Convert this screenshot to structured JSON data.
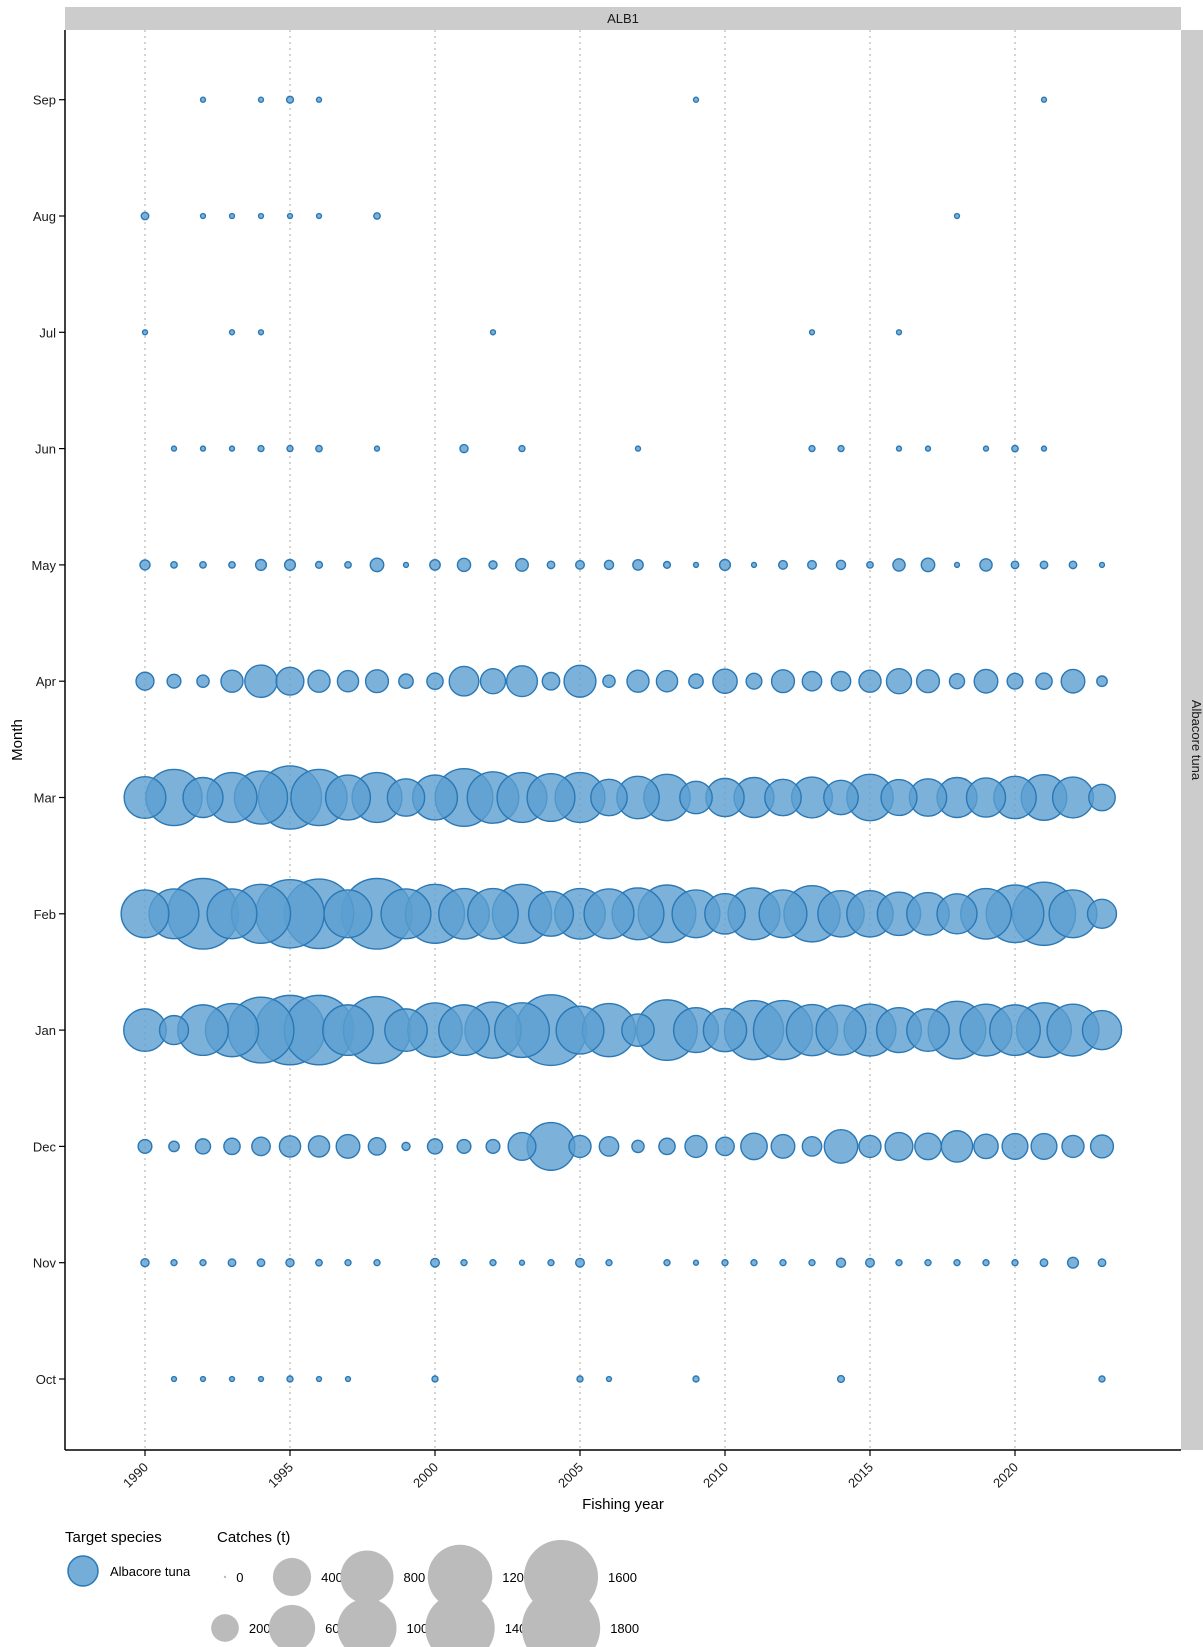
{
  "chart_data": {
    "type": "scatter",
    "facet_top": "ALB1",
    "facet_right": "Albacore tuna",
    "xlabel": "Fishing year",
    "ylabel": "Month",
    "xlim": [
      1987.25,
      2026.25
    ],
    "x_ticks": [
      1990,
      1995,
      2000,
      2005,
      2010,
      2015,
      2020
    ],
    "months": [
      "Oct",
      "Nov",
      "Dec",
      "Jan",
      "Feb",
      "Mar",
      "Apr",
      "May",
      "Jun",
      "Jul",
      "Aug",
      "Sep"
    ],
    "grid": "vertical dotted at x ticks",
    "point_color": "#5b9fd1",
    "point_stroke": "#2a78b5",
    "legend_color": "#bbbbbb",
    "legend": {
      "species_title": "Target species",
      "species": [
        "Albacore tuna"
      ],
      "size_title": "Catches (t)",
      "size_entries": [
        {
          "label": "0",
          "value": 0
        },
        {
          "label": "200",
          "value": 200
        },
        {
          "label": "400",
          "value": 400
        },
        {
          "label": "600",
          "value": 600
        },
        {
          "label": "800",
          "value": 800
        },
        {
          "label": "1000",
          "value": 1000
        },
        {
          "label": "1200",
          "value": 1200
        },
        {
          "label": "1400",
          "value": 1400
        },
        {
          "label": "1600",
          "value": 1600
        },
        {
          "label": "1800",
          "value": 1800
        }
      ]
    },
    "series": [
      {
        "month": "Sep",
        "x": [
          1992,
          1994,
          1995,
          1996,
          2009,
          2021
        ],
        "values": [
          2,
          2,
          6,
          2,
          2,
          2
        ]
      },
      {
        "month": "Aug",
        "x": [
          1990,
          1992,
          1993,
          1994,
          1995,
          1996,
          1998,
          2018
        ],
        "values": [
          8,
          2,
          2,
          2,
          2,
          2,
          5,
          2
        ]
      },
      {
        "month": "Jul",
        "x": [
          1990,
          1993,
          1994,
          2002,
          2013,
          2016
        ],
        "values": [
          2,
          2,
          2,
          2,
          2,
          2
        ]
      },
      {
        "month": "Jun",
        "x": [
          1991,
          1992,
          1993,
          1994,
          1995,
          1996,
          1998,
          2001,
          2003,
          2007,
          2013,
          2014,
          2016,
          2017,
          2019,
          2020,
          2021
        ],
        "values": [
          2,
          2,
          2,
          4,
          4,
          5,
          2,
          10,
          4,
          2,
          4,
          4,
          2,
          2,
          2,
          5,
          2
        ]
      },
      {
        "month": "May",
        "x": [
          1990,
          1991,
          1992,
          1993,
          1994,
          1995,
          1996,
          1997,
          1998,
          1999,
          2000,
          2001,
          2002,
          2003,
          2004,
          2005,
          2006,
          2007,
          2008,
          2009,
          2010,
          2011,
          2012,
          2013,
          2014,
          2015,
          2016,
          2017,
          2018,
          2019,
          2020,
          2021,
          2022,
          2023
        ],
        "values": [
          18,
          5,
          5,
          5,
          22,
          22,
          6,
          5,
          38,
          2,
          20,
          36,
          10,
          32,
          8,
          12,
          14,
          20,
          6,
          2,
          22,
          2,
          12,
          12,
          14,
          5,
          30,
          38,
          2,
          30,
          8,
          8,
          8,
          2
        ]
      },
      {
        "month": "Apr",
        "x": [
          1990,
          1991,
          1992,
          1993,
          1994,
          1995,
          1996,
          1997,
          1998,
          1999,
          2000,
          2001,
          2002,
          2003,
          2004,
          2005,
          2006,
          2007,
          2008,
          2009,
          2010,
          2011,
          2012,
          2013,
          2014,
          2015,
          2016,
          2017,
          2018,
          2019,
          2020,
          2021,
          2022,
          2023
        ],
        "values": [
          75,
          40,
          30,
          120,
          280,
          200,
          120,
          110,
          130,
          45,
          60,
          230,
          160,
          250,
          70,
          270,
          30,
          120,
          110,
          45,
          150,
          55,
          130,
          90,
          90,
          120,
          160,
          130,
          50,
          140,
          55,
          60,
          140,
          20
        ]
      },
      {
        "month": "Mar",
        "x": [
          1990,
          1991,
          1992,
          1993,
          1994,
          1995,
          1996,
          1997,
          1998,
          1999,
          2000,
          2001,
          2002,
          2003,
          2004,
          2005,
          2006,
          2007,
          2008,
          2009,
          2010,
          2011,
          2012,
          2013,
          2014,
          2015,
          2016,
          2017,
          2018,
          2019,
          2020,
          2021,
          2022,
          2023
        ],
        "values": [
          480,
          900,
          440,
          700,
          800,
          1150,
          900,
          560,
          700,
          380,
          560,
          950,
          750,
          700,
          640,
          700,
          360,
          500,
          600,
          280,
          400,
          440,
          360,
          460,
          320,
          600,
          350,
          380,
          440,
          420,
          500,
          580,
          460,
          180
        ]
      },
      {
        "month": "Feb",
        "x": [
          1990,
          1991,
          1992,
          1993,
          1994,
          1995,
          1996,
          1997,
          1998,
          1999,
          2000,
          2001,
          2002,
          2003,
          2004,
          2005,
          2006,
          2007,
          2008,
          2009,
          2010,
          2011,
          2012,
          2013,
          2014,
          2015,
          2016,
          2017,
          2018,
          2019,
          2020,
          2021,
          2022,
          2023
        ],
        "values": [
          640,
          700,
          1450,
          700,
          1000,
          1350,
          1400,
          640,
          1450,
          700,
          1000,
          720,
          720,
          1000,
          560,
          720,
          700,
          760,
          950,
          640,
          450,
          760,
          640,
          900,
          600,
          600,
          520,
          500,
          440,
          720,
          950,
          1150,
          640,
          220
        ]
      },
      {
        "month": "Jan",
        "x": [
          1990,
          1991,
          1992,
          1993,
          1994,
          1995,
          1996,
          1997,
          1998,
          1999,
          2000,
          2001,
          2002,
          2003,
          2004,
          2005,
          2006,
          2007,
          2008,
          2009,
          2010,
          2011,
          2012,
          2013,
          2014,
          2015,
          2016,
          2017,
          2018,
          2019,
          2020,
          2021,
          2022,
          2023
        ],
        "values": [
          500,
          220,
          720,
          800,
          1250,
          1400,
          1400,
          720,
          1300,
          500,
          840,
          720,
          900,
          850,
          1450,
          640,
          800,
          280,
          1050,
          560,
          520,
          1000,
          1000,
          740,
          700,
          760,
          560,
          500,
          950,
          760,
          720,
          850,
          760,
          420
        ]
      },
      {
        "month": "Dec",
        "x": [
          1990,
          1991,
          1992,
          1993,
          1994,
          1995,
          1996,
          1997,
          1998,
          1999,
          2000,
          2001,
          2002,
          2003,
          2004,
          2005,
          2006,
          2007,
          2008,
          2009,
          2010,
          2011,
          2012,
          2013,
          2014,
          2015,
          2016,
          2017,
          2018,
          2019,
          2020,
          2021,
          2022,
          2023
        ],
        "values": [
          40,
          20,
          50,
          60,
          80,
          110,
          110,
          140,
          70,
          10,
          50,
          40,
          40,
          200,
          640,
          120,
          90,
          30,
          60,
          120,
          80,
          180,
          140,
          90,
          300,
          120,
          200,
          180,
          260,
          150,
          170,
          170,
          120,
          130
        ]
      },
      {
        "month": "Nov",
        "x": [
          1990,
          1991,
          1992,
          1993,
          1994,
          1995,
          1996,
          1997,
          1998,
          2000,
          2001,
          2002,
          2003,
          2004,
          2005,
          2006,
          2008,
          2009,
          2010,
          2011,
          2012,
          2013,
          2014,
          2015,
          2016,
          2017,
          2018,
          2019,
          2020,
          2021,
          2022,
          2023
        ],
        "values": [
          10,
          4,
          4,
          8,
          8,
          10,
          5,
          4,
          4,
          12,
          4,
          4,
          2,
          4,
          12,
          4,
          4,
          2,
          4,
          4,
          4,
          4,
          14,
          12,
          4,
          4,
          4,
          4,
          4,
          8,
          22,
          8
        ]
      },
      {
        "month": "Oct",
        "x": [
          1991,
          1992,
          1993,
          1994,
          1995,
          1996,
          1997,
          2000,
          2005,
          2006,
          2009,
          2014,
          2023
        ],
        "values": [
          2,
          2,
          2,
          2,
          4,
          2,
          2,
          4,
          4,
          2,
          4,
          6,
          4
        ]
      }
    ]
  }
}
